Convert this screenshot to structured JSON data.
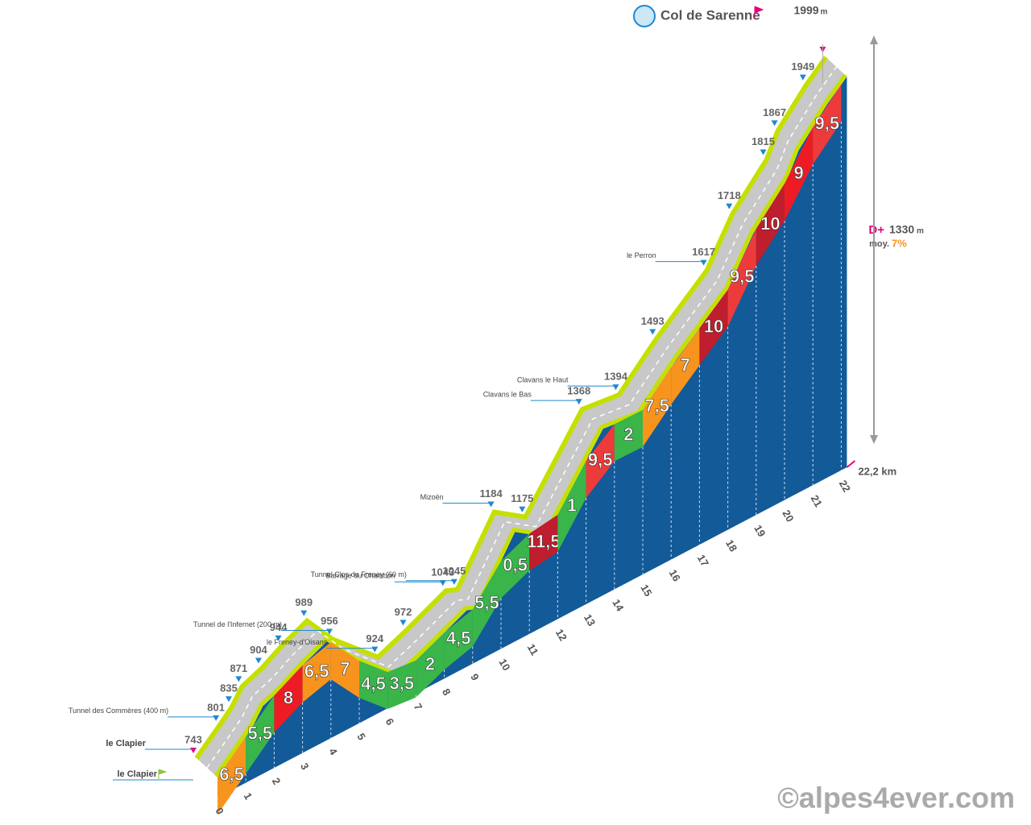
{
  "chart_data": {
    "type": "profile",
    "title": "Col de Sarenne",
    "start": "le Clapier",
    "unit": "m",
    "distance": {
      "value": 22.2,
      "label": "22,2 km"
    },
    "gain_label": "D+",
    "gain": 1330,
    "avg_label": "moy.",
    "avg_gradient": {
      "value": 7,
      "label": "7%"
    },
    "watermark": "©alpes4ever.com",
    "points": [
      {
        "km": 0,
        "alt": 743,
        "place": "le Clapier"
      },
      {
        "km": 0.8,
        "alt": 801,
        "place": "Tunnel des Commères (400 m)"
      },
      {
        "km": 1.25,
        "alt": 835
      },
      {
        "km": 1.6,
        "alt": 871
      },
      {
        "km": 2.3,
        "alt": 904
      },
      {
        "km": 3.0,
        "alt": 944
      },
      {
        "km": 3.9,
        "alt": 989
      },
      {
        "km": 4.8,
        "alt": 956,
        "place": "Tunnel de l'Infernet (200 m)"
      },
      {
        "km": 6.4,
        "alt": 924,
        "place": "le Freney-d'Oisans"
      },
      {
        "km": 7.4,
        "alt": 972
      },
      {
        "km": 8.8,
        "alt": 1043,
        "place": "Barrage du Chambon"
      },
      {
        "km": 9.2,
        "alt": 1045,
        "place": "Tunnel Clos du Freney (60 m)"
      },
      {
        "km": 10.5,
        "alt": 1184,
        "place": "Mizoën"
      },
      {
        "km": 11.6,
        "alt": 1175
      },
      {
        "km": 13.6,
        "alt": 1368,
        "place": "Clavans le Bas"
      },
      {
        "km": 14.9,
        "alt": 1394,
        "place": "Clavans le Haut"
      },
      {
        "km": 16.2,
        "alt": 1493
      },
      {
        "km": 18.0,
        "alt": 1617,
        "place": "le Perron"
      },
      {
        "km": 18.9,
        "alt": 1718
      },
      {
        "km": 20.1,
        "alt": 1815
      },
      {
        "km": 20.5,
        "alt": 1867
      },
      {
        "km": 21.5,
        "alt": 1949
      },
      {
        "km": 22.2,
        "alt": 1999
      }
    ],
    "km_ticks": [
      0,
      1,
      2,
      3,
      4,
      5,
      6,
      7,
      8,
      9,
      10,
      11,
      12,
      13,
      14,
      15,
      16,
      17,
      18,
      19,
      20,
      21,
      22
    ],
    "gradients": [
      6.5,
      5.5,
      8,
      6.5,
      7,
      4.5,
      3.5,
      2,
      4.5,
      5.5,
      0.5,
      11.5,
      1,
      9.5,
      2,
      7.5,
      7,
      10,
      9.5,
      10,
      9,
      9.5
    ],
    "value_labels": [
      "6,5",
      "5,5",
      "8",
      "6,5",
      "7",
      "4,5",
      "3,5",
      "2",
      "4,5",
      "5,5",
      "0,5",
      "11,5",
      "1",
      "9,5",
      "2",
      "7,5",
      "7",
      "10",
      "9,5",
      "10",
      "9",
      "9,5"
    ],
    "colors": [
      "#f7941d",
      "#39b54a",
      "#ed1c24",
      "#f7941d",
      "#f7941d",
      "#39b54a",
      "#39b54a",
      "#39b54a",
      "#39b54a",
      "#39b54a",
      "#39b54a",
      "#be1e2d",
      "#39b54a",
      "#ed3b3b",
      "#39b54a",
      "#f7941d",
      "#f7941d",
      "#be1e2d",
      "#ed3b3b",
      "#be1e2d",
      "#ed1c24",
      "#ed3b3b"
    ],
    "face_color": "#135a99"
  }
}
